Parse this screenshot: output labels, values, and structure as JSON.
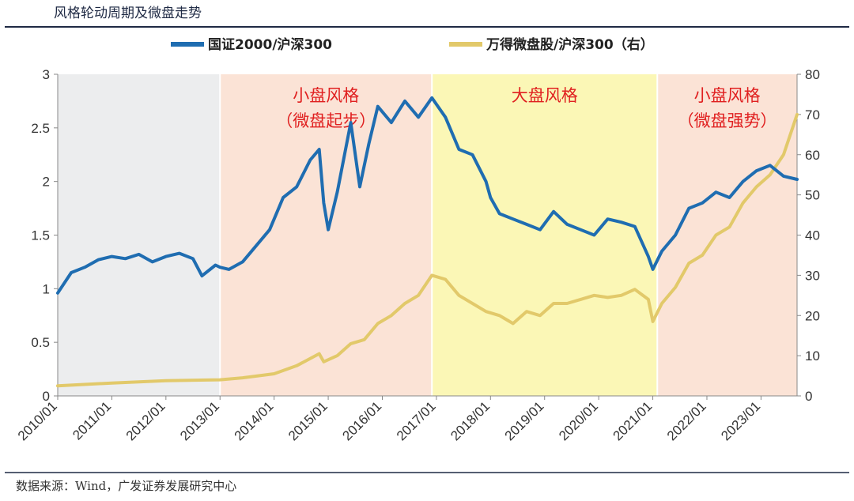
{
  "colors": {
    "series_small_cap": "#1f6db1",
    "series_micro_cap": "#e2c96a",
    "region_grey": "#ecedee",
    "region_peach": "#fbe3d6",
    "region_yellow": "#fbf7b6",
    "annotation": "#e02020",
    "rule": "#1f2a44"
  },
  "chart_data": {
    "type": "line",
    "title": "风格轮动周期及微盘走势",
    "source": "数据来源：Wind，广发证券发展研究中心",
    "x_tick_labels": [
      "2010/01",
      "2011/01",
      "2012/01",
      "2013/01",
      "2014/01",
      "2015/01",
      "2016/01",
      "2017/01",
      "2018/01",
      "2019/01",
      "2020/01",
      "2021/01",
      "2022/01",
      "2023/01"
    ],
    "x_range": [
      "2010/01",
      "2023/09"
    ],
    "y_left": {
      "range": [
        0,
        3
      ],
      "ticks": [
        "0",
        "0.5",
        "1",
        "1.5",
        "2",
        "2.5",
        "3"
      ]
    },
    "y_right": {
      "range": [
        0,
        80
      ],
      "ticks": [
        "0",
        "10",
        "20",
        "30",
        "40",
        "50",
        "60",
        "70",
        "80"
      ]
    },
    "legend": {
      "placement": "top",
      "entries": [
        "国证2000/沪深300",
        "万得微盘股/沪深300（右）"
      ]
    },
    "grid": false,
    "regions": [
      {
        "start": "2010/01",
        "end": "2013/01",
        "color": "grey",
        "labels": []
      },
      {
        "start": "2013/01",
        "end": "2016/12",
        "color": "peach",
        "labels": [
          "小盘风格",
          "（微盘起步）"
        ]
      },
      {
        "start": "2016/12",
        "end": "2021/02",
        "color": "yellow",
        "labels": [
          "大盘风格"
        ]
      },
      {
        "start": "2021/02",
        "end": "2023/09",
        "color": "peach",
        "labels": [
          "小盘风格",
          "（微盘强势）"
        ]
      }
    ],
    "series": [
      {
        "name": "国证2000/沪深300",
        "axis": "left",
        "points": [
          [
            "2010/01",
            0.96
          ],
          [
            "2010/04",
            1.15
          ],
          [
            "2010/07",
            1.2
          ],
          [
            "2010/10",
            1.27
          ],
          [
            "2011/01",
            1.3
          ],
          [
            "2011/04",
            1.28
          ],
          [
            "2011/07",
            1.32
          ],
          [
            "2011/10",
            1.25
          ],
          [
            "2012/01",
            1.3
          ],
          [
            "2012/04",
            1.33
          ],
          [
            "2012/07",
            1.28
          ],
          [
            "2012/09",
            1.12
          ],
          [
            "2012/12",
            1.22
          ],
          [
            "2013/01",
            1.2
          ],
          [
            "2013/03",
            1.18
          ],
          [
            "2013/06",
            1.25
          ],
          [
            "2013/09",
            1.4
          ],
          [
            "2013/12",
            1.55
          ],
          [
            "2014/03",
            1.85
          ],
          [
            "2014/06",
            1.95
          ],
          [
            "2014/09",
            2.2
          ],
          [
            "2014/11",
            2.3
          ],
          [
            "2014/12",
            1.8
          ],
          [
            "2015/01",
            1.55
          ],
          [
            "2015/03",
            1.9
          ],
          [
            "2015/06",
            2.55
          ],
          [
            "2015/08",
            1.95
          ],
          [
            "2015/10",
            2.35
          ],
          [
            "2015/12",
            2.7
          ],
          [
            "2016/03",
            2.55
          ],
          [
            "2016/06",
            2.75
          ],
          [
            "2016/09",
            2.6
          ],
          [
            "2016/12",
            2.78
          ],
          [
            "2017/03",
            2.6
          ],
          [
            "2017/06",
            2.3
          ],
          [
            "2017/09",
            2.25
          ],
          [
            "2017/12",
            2.0
          ],
          [
            "2018/01",
            1.85
          ],
          [
            "2018/03",
            1.7
          ],
          [
            "2018/06",
            1.65
          ],
          [
            "2018/09",
            1.6
          ],
          [
            "2018/12",
            1.55
          ],
          [
            "2019/03",
            1.72
          ],
          [
            "2019/06",
            1.6
          ],
          [
            "2019/09",
            1.55
          ],
          [
            "2019/12",
            1.5
          ],
          [
            "2020/03",
            1.65
          ],
          [
            "2020/06",
            1.62
          ],
          [
            "2020/09",
            1.58
          ],
          [
            "2020/12",
            1.3
          ],
          [
            "2021/01",
            1.18
          ],
          [
            "2021/03",
            1.35
          ],
          [
            "2021/06",
            1.5
          ],
          [
            "2021/09",
            1.75
          ],
          [
            "2021/12",
            1.8
          ],
          [
            "2022/03",
            1.9
          ],
          [
            "2022/06",
            1.85
          ],
          [
            "2022/09",
            2.0
          ],
          [
            "2022/12",
            2.1
          ],
          [
            "2023/03",
            2.15
          ],
          [
            "2023/06",
            2.05
          ],
          [
            "2023/09",
            2.02
          ]
        ]
      },
      {
        "name": "万得微盘股/沪深300（右）",
        "axis": "right",
        "points": [
          [
            "2010/01",
            2.5
          ],
          [
            "2011/01",
            3.2
          ],
          [
            "2012/01",
            3.8
          ],
          [
            "2013/01",
            4.0
          ],
          [
            "2013/06",
            4.5
          ],
          [
            "2014/01",
            5.5
          ],
          [
            "2014/06",
            7.5
          ],
          [
            "2014/11",
            10.5
          ],
          [
            "2014/12",
            8.5
          ],
          [
            "2015/03",
            10.0
          ],
          [
            "2015/06",
            13.0
          ],
          [
            "2015/09",
            14.0
          ],
          [
            "2015/12",
            18.0
          ],
          [
            "2016/03",
            20.0
          ],
          [
            "2016/06",
            23.0
          ],
          [
            "2016/09",
            25.0
          ],
          [
            "2016/12",
            30.0
          ],
          [
            "2017/03",
            29.0
          ],
          [
            "2017/06",
            25.0
          ],
          [
            "2017/09",
            23.0
          ],
          [
            "2017/12",
            21.0
          ],
          [
            "2018/03",
            20.0
          ],
          [
            "2018/06",
            18.0
          ],
          [
            "2018/09",
            21.0
          ],
          [
            "2018/12",
            20.0
          ],
          [
            "2019/03",
            23.0
          ],
          [
            "2019/06",
            23.0
          ],
          [
            "2019/09",
            24.0
          ],
          [
            "2019/12",
            25.0
          ],
          [
            "2020/03",
            24.5
          ],
          [
            "2020/06",
            25.0
          ],
          [
            "2020/09",
            26.5
          ],
          [
            "2020/12",
            24.0
          ],
          [
            "2021/01",
            18.5
          ],
          [
            "2021/03",
            23.0
          ],
          [
            "2021/06",
            27.0
          ],
          [
            "2021/09",
            33.0
          ],
          [
            "2021/12",
            35.0
          ],
          [
            "2022/03",
            40.0
          ],
          [
            "2022/06",
            42.0
          ],
          [
            "2022/09",
            48.0
          ],
          [
            "2022/12",
            52.0
          ],
          [
            "2023/03",
            55.0
          ],
          [
            "2023/06",
            60.0
          ],
          [
            "2023/09",
            70.0
          ]
        ]
      }
    ]
  }
}
